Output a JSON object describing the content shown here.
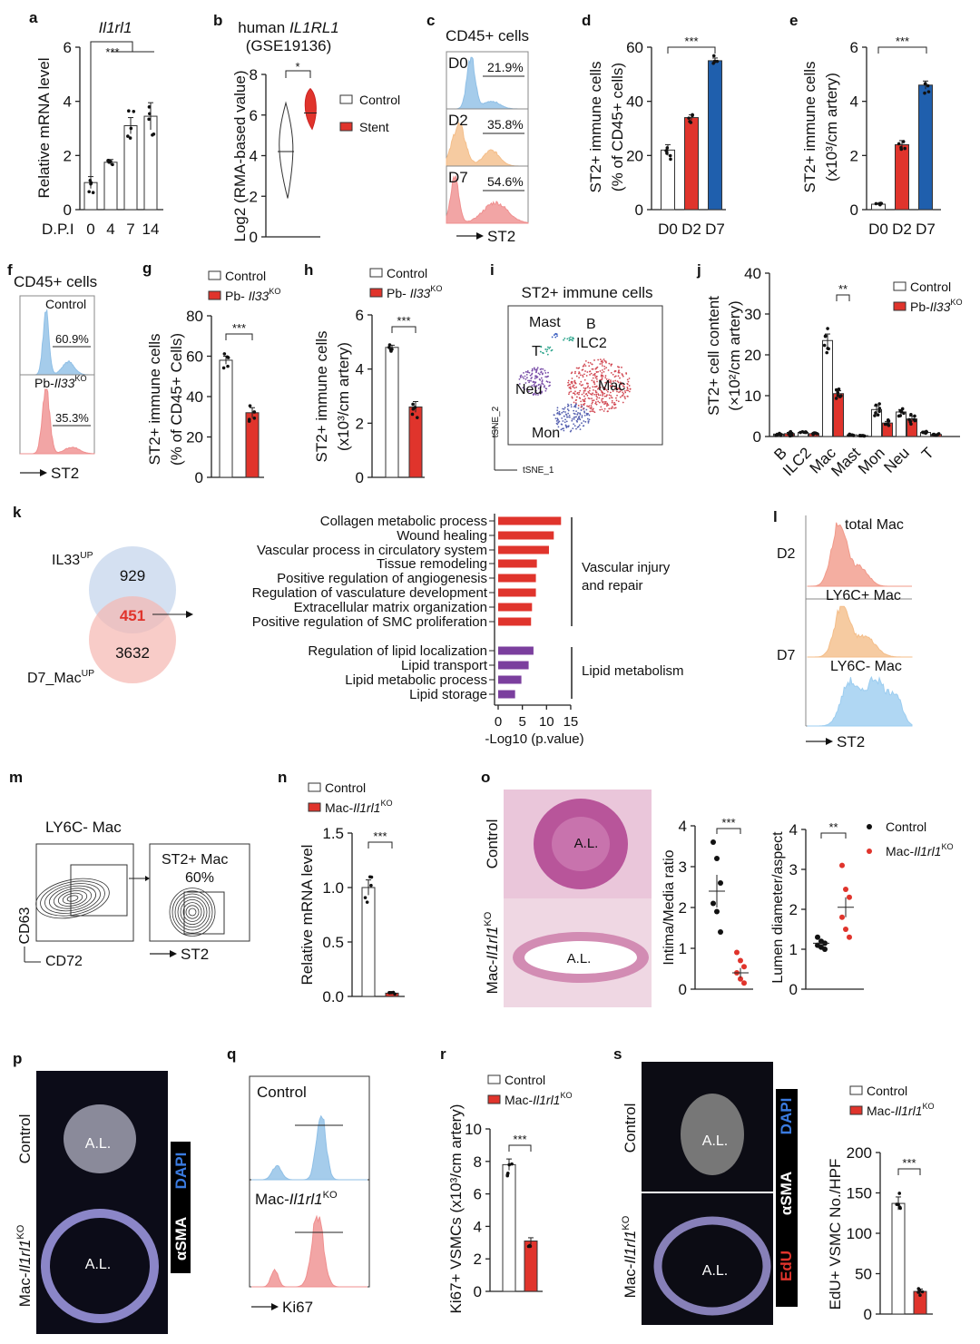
{
  "panels": {
    "c": {
      "letter": "c",
      "title": "CD45+ cells",
      "rows": [
        {
          "label": "D0",
          "pct": "21.9%"
        },
        {
          "label": "D2",
          "pct": "35.8%"
        },
        {
          "label": "D7",
          "pct": "54.6%"
        }
      ],
      "axis": "ST2"
    },
    "f": {
      "letter": "f",
      "title": "CD45+ cells",
      "rows": [
        {
          "label": {
            "t": "Control"
          },
          "pct": "60.9%"
        },
        {
          "label": {
            "t": "Pb-",
            "i": "Il33",
            "sup": "KO"
          },
          "pct": "35.3%"
        }
      ],
      "axis": "ST2"
    },
    "i": {
      "letter": "i",
      "title": "ST2+ immune cells",
      "clusters": [
        "Mast",
        "B",
        "ILC2",
        "T",
        "Neu",
        "Mac",
        "Mon"
      ],
      "xaxis": "tSNE_1",
      "yaxis": "tSNE_2"
    },
    "k_venn": {
      "set_a": {
        "t": "IL33",
        "sup": "UP"
      },
      "set_b": {
        "t": "D7_Mac",
        "sup": "UP"
      },
      "only_a": "929",
      "overlap": "451",
      "only_b": "3632"
    },
    "l": {
      "letter": "l",
      "total": "total Mac",
      "ly6c_pos": "LY6C+ Mac",
      "ly6c_neg": "LY6C- Mac",
      "d2": "D2",
      "d7": "D7",
      "axis": "ST2"
    },
    "m": {
      "letter": "m",
      "title": "LY6C- Mac",
      "gate_title": "ST2+ Mac",
      "gate_pct": "60%",
      "yaxis": "CD63",
      "xaxis": "CD72",
      "xaxis2": "ST2"
    },
    "o": {
      "letter": "o",
      "row1": "Control",
      "row2": {
        "t": "Mac-",
        "i": "Il1rl1",
        "sup": "KO"
      },
      "lumen": "A.L."
    },
    "p": {
      "letter": "p",
      "row1": "Control",
      "row2": {
        "t": "Mac-",
        "i": "Il1rl1",
        "sup": "KO"
      },
      "lumen": "A.L.",
      "stain1": "DAPI",
      "stain2": "αSMA"
    },
    "q": {
      "letter": "q",
      "row1": "Control",
      "row2": {
        "t": "Mac-",
        "i": "Il1rl1",
        "sup": "KO"
      },
      "axis": "Ki67"
    },
    "s_img": {
      "row1": "Control",
      "row2": {
        "t": "Mac-",
        "i": "Il1rl1",
        "sup": "KO"
      },
      "lumen": "A.L.",
      "stain1": "DAPI",
      "stain2": "αSMA",
      "stain3": "EdU"
    }
  },
  "chart_data": [
    {
      "panel": "a",
      "type": "bar",
      "title": "Il1rl1",
      "ylabel": [
        "Relative mRNA level"
      ],
      "xlabel": "D.P.I",
      "categories": [
        "0",
        "4",
        "7",
        "14"
      ],
      "series": [
        {
          "name": "Il1rl1",
          "values": [
            1.0,
            1.75,
            3.1,
            3.45
          ],
          "errors": [
            0.22,
            0.1,
            0.3,
            0.5
          ]
        }
      ],
      "colors": [
        "#ffffff"
      ],
      "ylim": [
        0,
        6
      ],
      "yticks": [
        "0",
        "2",
        "4",
        "6"
      ],
      "significance": "***"
    },
    {
      "panel": "b",
      "type": "violin",
      "title": {
        "t": "human ",
        "i": "IL1RL1"
      },
      "subtitle": "(GSE19136)",
      "ylabel": "Log2 (RMA-based value)",
      "ylim": [
        0,
        8
      ],
      "yticks": [
        "0",
        "2",
        "4",
        "6",
        "8"
      ],
      "significance": "*",
      "groups": [
        {
          "name": "Control",
          "min": 1.9,
          "median": 4.2,
          "max": 6.6,
          "color": "#ffffff"
        },
        {
          "name": "Stent",
          "min": 5.3,
          "median": 6.1,
          "max": 7.3,
          "color": "#e0342c"
        }
      ]
    },
    {
      "panel": "d",
      "type": "bar",
      "ylabel": [
        "ST2+ immune cells",
        "(% of CD45+ cells)"
      ],
      "categories": [
        "D0",
        "D2",
        "D7"
      ],
      "series": [
        {
          "name": "ST2+",
          "values": [
            22,
            34,
            55
          ],
          "errors": [
            2,
            1,
            1
          ]
        }
      ],
      "colors": [
        "#ffffff",
        "#e0342c",
        "#1f5fad"
      ],
      "ylim": [
        0,
        60
      ],
      "yticks": [
        "0",
        "20",
        "40",
        "60"
      ],
      "significance": "***"
    },
    {
      "panel": "e",
      "type": "bar",
      "ylabel": [
        "ST2+ immune cells",
        "(x10³/cm artery)"
      ],
      "categories": [
        "D0",
        "D2",
        "D7"
      ],
      "series": [
        {
          "name": "ST2+",
          "values": [
            0.2,
            2.4,
            4.6
          ],
          "errors": [
            0.02,
            0.15,
            0.15
          ]
        }
      ],
      "colors": [
        "#ffffff",
        "#e0342c",
        "#1f5fad"
      ],
      "ylim": [
        0,
        6
      ],
      "yticks": [
        "0",
        "2",
        "4",
        "6"
      ],
      "significance": "***"
    },
    {
      "panel": "g",
      "type": "bar",
      "ylabel": [
        "ST2+ immune cells",
        "(% of CD45+ Cells)"
      ],
      "categories": [
        "Control",
        "Pb-Il33KO"
      ],
      "legend": [
        {
          "t": "Control"
        },
        {
          "t": "Pb- ",
          "i": "Il33",
          "sup": "KO"
        }
      ],
      "series": [
        {
          "name": "ST2+",
          "values": [
            58,
            32
          ],
          "errors": [
            2,
            2.5
          ]
        }
      ],
      "colors": [
        "#ffffff",
        "#e0342c"
      ],
      "ylim": [
        0,
        80
      ],
      "yticks": [
        "0",
        "20",
        "40",
        "60",
        "80"
      ],
      "significance": "***"
    },
    {
      "panel": "h",
      "type": "bar",
      "ylabel": [
        "ST2+ immune cells",
        "(x10³/cm artery)"
      ],
      "categories": [
        "Control",
        "Pb-Il33KO"
      ],
      "legend": [
        {
          "t": "Control"
        },
        {
          "t": "Pb- ",
          "i": "Il33",
          "sup": "KO"
        }
      ],
      "series": [
        {
          "name": "ST2+",
          "values": [
            4.8,
            2.6
          ],
          "errors": [
            0.08,
            0.2
          ]
        }
      ],
      "colors": [
        "#ffffff",
        "#e0342c"
      ],
      "ylim": [
        0,
        6
      ],
      "yticks": [
        "0",
        "2",
        "4",
        "6"
      ],
      "significance": "***"
    },
    {
      "panel": "j",
      "type": "bar",
      "ylabel": [
        "ST2+ cell content",
        "(×10²/cm artery)"
      ],
      "categories": [
        "B",
        "ILC2",
        "Mac",
        "Mast",
        "Mon",
        "Neu",
        "T"
      ],
      "legend": [
        {
          "t": "Control"
        },
        {
          "t": "Pb-",
          "i": "Il33",
          "sup": "KO"
        }
      ],
      "series": [
        {
          "name": "Control",
          "values": [
            0.6,
            1.0,
            23.5,
            0.4,
            6.6,
            6.0,
            1.0
          ],
          "errors": [
            0.2,
            0.1,
            1.6,
            0.1,
            0.9,
            0.6,
            0.2
          ]
        },
        {
          "name": "Pb-Il33KO",
          "values": [
            0.7,
            0.7,
            10.5,
            0.2,
            3.3,
            4.3,
            0.5
          ],
          "errors": [
            0.3,
            0.1,
            0.7,
            0.05,
            0.4,
            0.7,
            0.1
          ]
        }
      ],
      "colors": [
        "#ffffff",
        "#e0342c"
      ],
      "ylim": [
        0,
        40
      ],
      "yticks": [
        "0",
        "10",
        "20",
        "30",
        "40"
      ],
      "significance": "**"
    },
    {
      "panel": "k",
      "type": "bar",
      "orientation": "horizontal",
      "xlabel": "-Log10 (p.value)",
      "xlim": [
        0,
        15
      ],
      "xticks": [
        "0",
        "5",
        "10",
        "15"
      ],
      "groups": [
        {
          "name": "Vascular injury and repair",
          "name_lines": [
            "Vascular injury",
            "and repair"
          ],
          "color": "#e0342c",
          "terms": [
            "Collagen metabolic process",
            "Wound healing",
            "Vascular process in circulatory system",
            "Tissue remodeling",
            "Positive regulation of angiogenesis",
            "Regulation of vasculature development",
            "Extracellular matrix organization",
            "Positive regulation of SMC proliferation"
          ],
          "values": [
            13,
            11.5,
            10.5,
            8,
            7.8,
            7.8,
            7,
            6.8
          ]
        },
        {
          "name": "Lipid metabolism",
          "name_lines": [
            "Lipid metabolism"
          ],
          "color": "#7b3f9e",
          "terms": [
            "Regulation of lipid localization",
            "Lipid transport",
            "Lipid metabolic process",
            "Lipid storage"
          ],
          "values": [
            7.3,
            6.3,
            4.8,
            3.5
          ]
        }
      ]
    },
    {
      "panel": "n",
      "type": "bar",
      "ylabel": [
        "Relative mRNA level"
      ],
      "categories": [
        "Control",
        "Mac-Il1rl1KO"
      ],
      "legend": [
        {
          "t": "Control"
        },
        {
          "t": "Mac-",
          "i": "Il1rl1",
          "sup": "KO"
        }
      ],
      "series": [
        {
          "name": "Il1rl1",
          "values": [
            1.0,
            0.03
          ],
          "errors": [
            0.07,
            0.01
          ]
        }
      ],
      "colors": [
        "#ffffff",
        "#e0342c"
      ],
      "ylim": [
        0,
        1.5
      ],
      "yticks": [
        "0.0",
        "0.5",
        "1.0",
        "1.5"
      ],
      "significance": "***"
    },
    {
      "panel": "o1",
      "type": "scatter",
      "ylabel": "Intima/Media ratio",
      "ylim": [
        0,
        4
      ],
      "yticks": [
        "0",
        "1",
        "2",
        "3",
        "4"
      ],
      "significance": "***",
      "groups": [
        {
          "name": "Control",
          "mean": 2.4,
          "sem": 0.4,
          "points": [
            3.6,
            3.2,
            2.6,
            2.1,
            1.9,
            1.4
          ],
          "color": "#111111"
        },
        {
          "name": "Mac-Il1rl1KO",
          "mean": 0.4,
          "sem": 0.12,
          "points": [
            0.9,
            0.7,
            0.55,
            0.4,
            0.25,
            0.15
          ],
          "color": "#e0342c"
        }
      ]
    },
    {
      "panel": "o2",
      "type": "scatter",
      "ylabel": "Lumen diameter/aspect",
      "ylim": [
        0,
        4
      ],
      "yticks": [
        "0",
        "1",
        "2",
        "3",
        "4"
      ],
      "significance": "**",
      "legend": [
        {
          "t": "Control"
        },
        {
          "t": "Mac-",
          "i": "Il1rl1",
          "sup": "KO"
        }
      ],
      "groups": [
        {
          "name": "Control",
          "mean": 1.15,
          "sem": 0.05,
          "points": [
            1.3,
            1.2,
            1.15,
            1.1,
            1.05,
            1.0
          ],
          "color": "#111111"
        },
        {
          "name": "Mac-Il1rl1KO",
          "mean": 2.05,
          "sem": 0.25,
          "points": [
            3.1,
            2.5,
            2.3,
            1.8,
            1.5,
            1.3
          ],
          "color": "#e0342c"
        }
      ]
    },
    {
      "panel": "r",
      "type": "bar",
      "ylabel": [
        "Ki67+ VSMCs (x10³/cm artery)"
      ],
      "categories": [
        "Control",
        "Mac-Il1rl1KO"
      ],
      "legend": [
        {
          "t": "Control"
        },
        {
          "t": "Mac-",
          "i": "Il1rl1",
          "sup": "KO"
        }
      ],
      "series": [
        {
          "name": "Ki67+",
          "values": [
            7.8,
            3.1
          ],
          "errors": [
            0.35,
            0.2
          ]
        }
      ],
      "colors": [
        "#ffffff",
        "#e0342c"
      ],
      "ylim": [
        0,
        10
      ],
      "yticks": [
        "0",
        "2",
        "4",
        "6",
        "8",
        "10"
      ],
      "significance": "***"
    },
    {
      "panel": "s",
      "type": "bar",
      "ylabel": [
        "EdU+ VSMC No./HPF"
      ],
      "categories": [
        "Control",
        "Mac-Il1rl1KO"
      ],
      "legend": [
        {
          "t": "Control"
        },
        {
          "t": "Mac-",
          "i": "Il1rl1",
          "sup": "KO"
        }
      ],
      "series": [
        {
          "name": "EdU+",
          "values": [
            137,
            28
          ],
          "errors": [
            8,
            3
          ]
        }
      ],
      "colors": [
        "#ffffff",
        "#e0342c"
      ],
      "ylim": [
        0,
        200
      ],
      "yticks": [
        "0",
        "50",
        "100",
        "150",
        "200"
      ],
      "significance": "***"
    }
  ]
}
